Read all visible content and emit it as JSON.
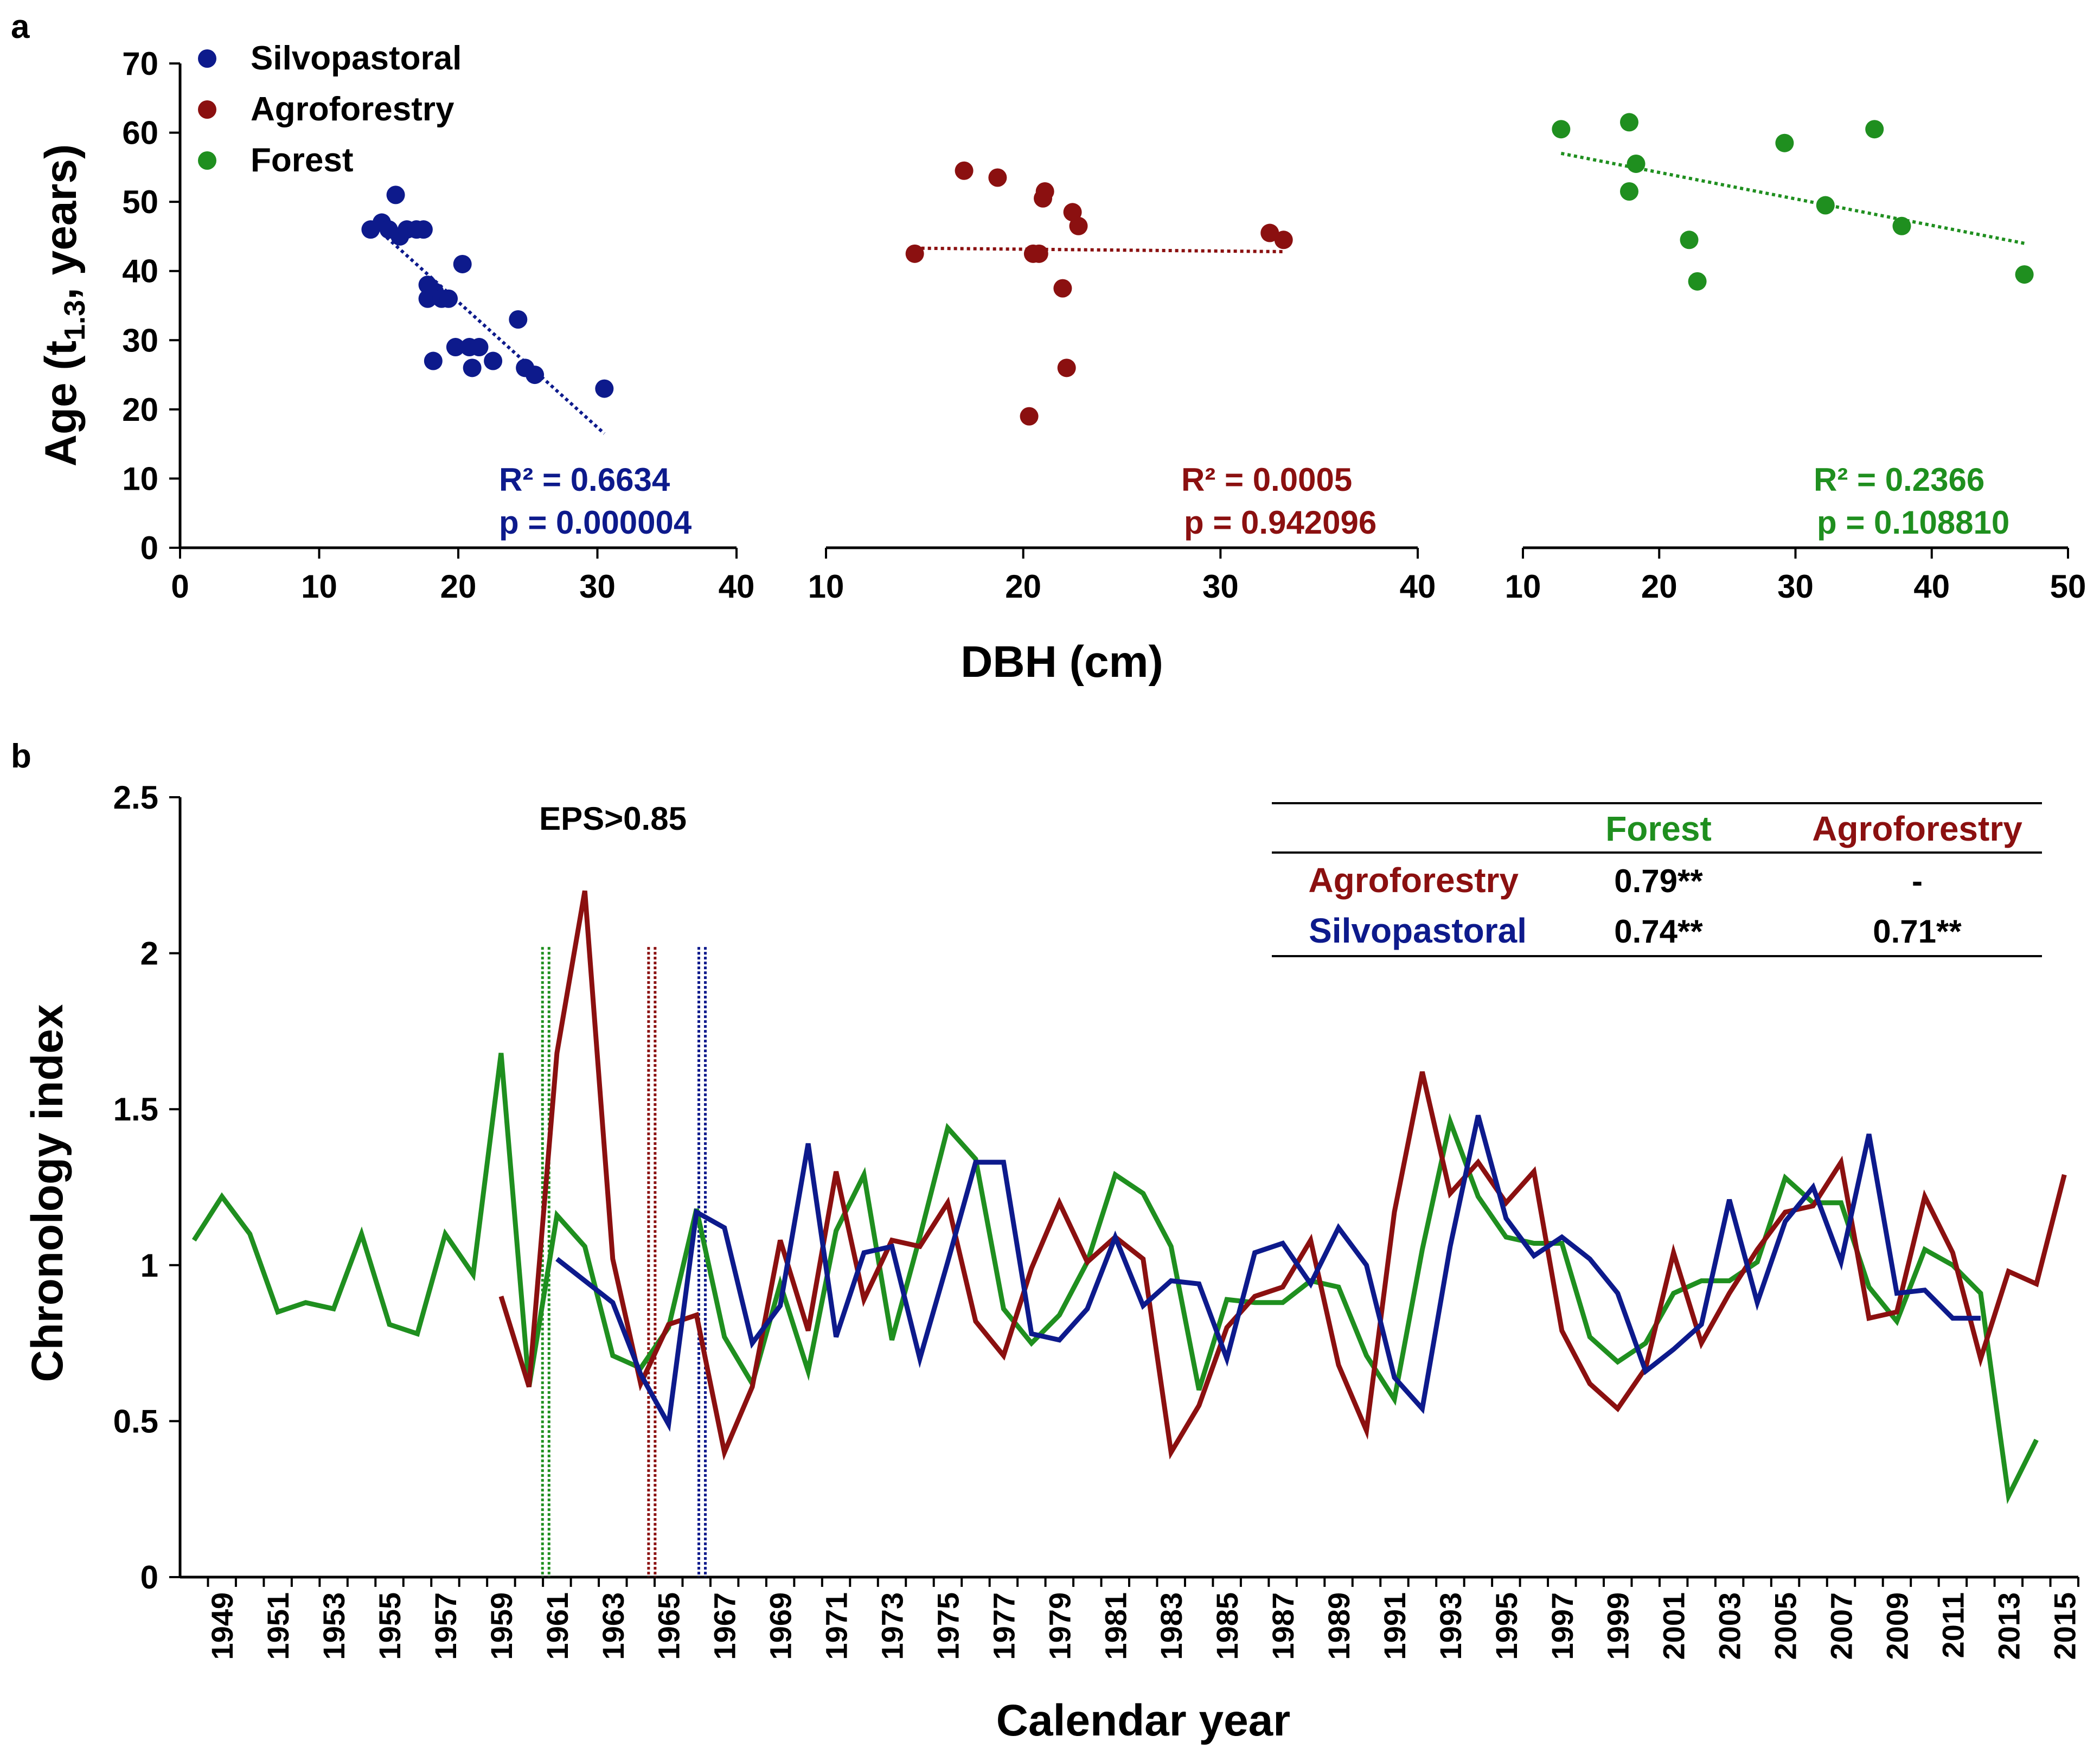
{
  "colors": {
    "silvopastoral": "#0d1a8c",
    "agroforestry": "#8b1010",
    "forest": "#1f8f1f",
    "axis": "#000000"
  },
  "chart_data": [
    {
      "type": "scatter",
      "panel_label": "a",
      "ylabel_main": "Age (t",
      "ylabel_sub": "1.3",
      "ylabel_end": ", years)",
      "xlabel": "DBH (cm)",
      "ylim": [
        0,
        70
      ],
      "yticks": [
        "0",
        "10",
        "20",
        "30",
        "40",
        "50",
        "60",
        "70"
      ],
      "legend": [
        "Silvopastoral",
        "Agroforestry",
        "Forest"
      ],
      "legend_position": "top-left",
      "subplots": [
        {
          "name": "Silvopastoral",
          "xlim": [
            0,
            40
          ],
          "xticks": [
            "0",
            "10",
            "20",
            "30",
            "40"
          ],
          "points": [
            [
              13.7,
              46
            ],
            [
              14.5,
              47
            ],
            [
              15,
              46
            ],
            [
              15.5,
              51
            ],
            [
              15.8,
              45
            ],
            [
              16.3,
              46
            ],
            [
              17,
              46
            ],
            [
              17.5,
              46
            ],
            [
              17.8,
              38
            ],
            [
              17.8,
              36
            ],
            [
              18.2,
              27
            ],
            [
              18.3,
              37
            ],
            [
              18.8,
              36
            ],
            [
              19.3,
              36
            ],
            [
              19.8,
              29
            ],
            [
              20.3,
              41
            ],
            [
              20.8,
              29
            ],
            [
              21,
              26
            ],
            [
              21.5,
              29
            ],
            [
              22.5,
              27
            ],
            [
              24.3,
              33
            ],
            [
              24.8,
              26
            ],
            [
              25.5,
              25
            ],
            [
              30.5,
              23
            ]
          ],
          "trend": [
            [
              14.5,
              45.5
            ],
            [
              30.5,
              16.5
            ]
          ],
          "r2_label": "R² = 0.6634",
          "p_label": "p = 0.000004"
        },
        {
          "name": "Agroforestry",
          "xlim": [
            10,
            40
          ],
          "xticks": [
            "10",
            "20",
            "30",
            "40"
          ],
          "points": [
            [
              14.5,
              42.5
            ],
            [
              17,
              54.5
            ],
            [
              18.7,
              53.5
            ],
            [
              20.3,
              19
            ],
            [
              20.5,
              42.5
            ],
            [
              20.8,
              42.5
            ],
            [
              21,
              50.5
            ],
            [
              21.1,
              51.5
            ],
            [
              22,
              37.5
            ],
            [
              22.2,
              26
            ],
            [
              22.5,
              48.5
            ],
            [
              22.8,
              46.5
            ],
            [
              32.5,
              45.5
            ],
            [
              33.2,
              44.5
            ]
          ],
          "trend": [
            [
              14.5,
              43.3
            ],
            [
              33.2,
              42.8
            ]
          ],
          "r2_label": "R² = 0.0005",
          "p_label": "p = 0.942096"
        },
        {
          "name": "Forest",
          "xlim": [
            10,
            50
          ],
          "xticks": [
            "10",
            "20",
            "30",
            "40",
            "50"
          ],
          "points": [
            [
              12.8,
              60.5
            ],
            [
              17.8,
              61.5
            ],
            [
              17.8,
              51.5
            ],
            [
              18.3,
              55.5
            ],
            [
              22.2,
              44.5
            ],
            [
              22.8,
              38.5
            ],
            [
              29.2,
              58.5
            ],
            [
              32.2,
              49.5
            ],
            [
              35.8,
              60.5
            ],
            [
              37.8,
              46.5
            ],
            [
              46.8,
              39.5
            ]
          ],
          "trend": [
            [
              12.8,
              57
            ],
            [
              46.8,
              44
            ]
          ],
          "r2_label": "R² = 0.2366",
          "p_label": "p = 0.108810"
        }
      ]
    },
    {
      "type": "line",
      "panel_label": "b",
      "ylabel": "Chronology index",
      "xlabel": "Calendar year",
      "ylim": [
        0,
        2.5
      ],
      "yticks": [
        "0",
        "0.5",
        "1",
        "1.5",
        "2",
        "2.5"
      ],
      "xlim": [
        1947.5,
        2015.5
      ],
      "xtick_labels": [
        "1949",
        "1951",
        "1953",
        "1955",
        "1957",
        "1959",
        "1961",
        "1963",
        "1965",
        "1967",
        "1969",
        "1971",
        "1973",
        "1975",
        "1977",
        "1979",
        "1981",
        "1983",
        "1985",
        "1987",
        "1989",
        "1991",
        "1993",
        "1995",
        "1997",
        "1999",
        "2001",
        "2003",
        "2005",
        "2007",
        "2009",
        "2011",
        "2013",
        "2015"
      ],
      "annotation": "EPS>0.85",
      "eps_lines": [
        {
          "series": "Forest",
          "year": 1960.6
        },
        {
          "series": "Agroforestry",
          "year": 1964.4
        },
        {
          "series": "Silvopastoral",
          "year": 1966.2
        }
      ],
      "series": [
        {
          "name": "Forest",
          "start": 1948,
          "values": [
            1.08,
            1.22,
            1.1,
            0.85,
            0.88,
            0.86,
            1.1,
            0.81,
            0.78,
            1.1,
            0.97,
            1.68,
            0.61,
            1.16,
            1.06,
            0.71,
            0.67,
            0.8,
            1.18,
            0.77,
            0.62,
            0.94,
            0.66,
            1.11,
            1.29,
            0.76,
            1.09,
            1.44,
            1.34,
            0.86,
            0.75,
            0.84,
            1.01,
            1.29,
            1.23,
            1.06,
            0.6,
            0.89,
            0.88,
            0.88,
            0.95,
            0.93,
            0.71,
            0.57,
            1.05,
            1.46,
            1.22,
            1.09,
            1.07,
            1.07,
            0.77,
            0.69,
            0.75,
            0.91,
            0.95,
            0.95,
            1.01,
            1.28,
            1.2,
            1.2,
            0.93,
            0.82,
            1.05,
            1.0,
            0.91,
            0.26,
            0.44
          ]
        },
        {
          "name": "Agroforestry",
          "start": 1959,
          "values": [
            0.9,
            0.61,
            1.68,
            2.2,
            1.02,
            0.62,
            0.81,
            0.84,
            0.4,
            0.61,
            1.08,
            0.79,
            1.3,
            0.89,
            1.08,
            1.06,
            1.2,
            0.82,
            0.71,
            0.99,
            1.2,
            1.01,
            1.09,
            1.02,
            0.4,
            0.55,
            0.8,
            0.9,
            0.93,
            1.08,
            0.68,
            0.47,
            1.17,
            1.62,
            1.23,
            1.33,
            1.2,
            1.3,
            0.79,
            0.62,
            0.54,
            0.67,
            1.04,
            0.75,
            0.91,
            1.05,
            1.17,
            1.19,
            1.33,
            0.83,
            0.85,
            1.22,
            1.04,
            0.7,
            0.98,
            0.94,
            1.29
          ]
        },
        {
          "name": "Silvopastoral",
          "start": 1961,
          "values": [
            1.02,
            0.95,
            0.88,
            0.65,
            0.49,
            1.17,
            1.12,
            0.75,
            0.87,
            1.39,
            0.77,
            1.04,
            1.06,
            0.7,
            1.01,
            1.33,
            1.33,
            0.78,
            0.76,
            0.86,
            1.09,
            0.87,
            0.95,
            0.94,
            0.7,
            1.04,
            1.07,
            0.94,
            1.12,
            1.0,
            0.64,
            0.54,
            1.06,
            1.48,
            1.15,
            1.03,
            1.09,
            1.02,
            0.91,
            0.66,
            0.73,
            0.81,
            1.21,
            0.88,
            1.14,
            1.25,
            1.01,
            1.42,
            0.91,
            0.92,
            0.83,
            0.83
          ]
        }
      ],
      "table": {
        "columns": [
          "",
          "Forest",
          "Agroforestry"
        ],
        "rows": [
          {
            "label": "Agroforestry",
            "values": [
              "0.79**",
              "-"
            ]
          },
          {
            "label": "Silvopastoral",
            "values": [
              "0.74**",
              "0.71**"
            ]
          }
        ]
      }
    }
  ]
}
